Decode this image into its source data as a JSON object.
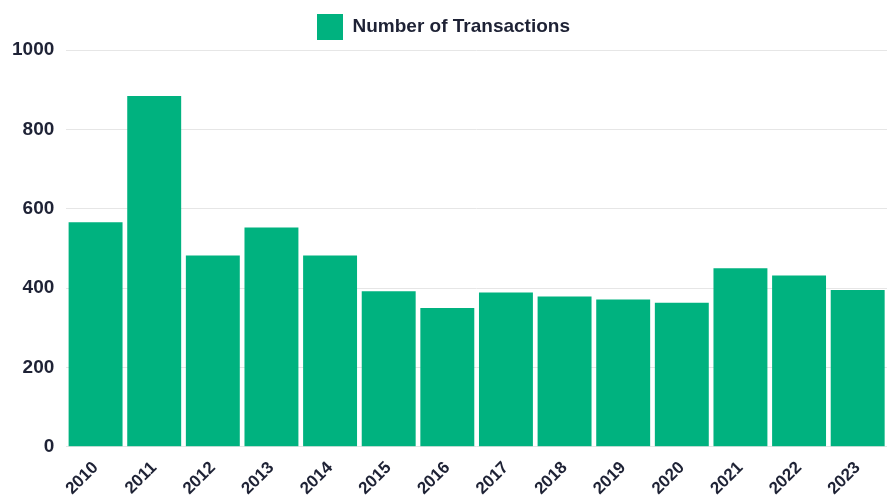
{
  "chart_data": {
    "type": "bar",
    "categories": [
      "2010",
      "2011",
      "2012",
      "2013",
      "2014",
      "2015",
      "2016",
      "2017",
      "2018",
      "2019",
      "2020",
      "2021",
      "2022",
      "2023"
    ],
    "series": [
      {
        "name": "Number of Transactions",
        "color": "#00b27f",
        "values": [
          566,
          884,
          482,
          553,
          482,
          392,
          350,
          389,
          379,
          371,
          363,
          450,
          432,
          395
        ]
      }
    ],
    "ylim": [
      0,
      1000
    ],
    "yticks": [
      0,
      200,
      400,
      600,
      800,
      1000
    ],
    "grid": true,
    "legend": "top"
  }
}
